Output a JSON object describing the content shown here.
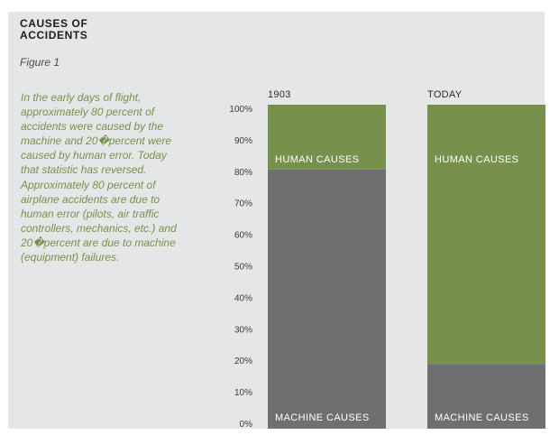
{
  "title": "CAUSES OF ACCIDENTS",
  "figure_label": "Figure 1",
  "description": "In the early days of flight, approximately 80 percent of accidents were caused by the machine and 20�percent were caused by human error. Today that statistic has reversed. Approximately 80 percent of airplane accidents are due to human error (pilots, air traffic controllers, mechanics, etc.) and 20�percent are due to machine (equipment) failures.",
  "colors": {
    "machine": "#6f6f71",
    "human": "#77914d",
    "background": "#e5e6e7"
  },
  "chart_data": {
    "type": "bar",
    "stacked": true,
    "categories": [
      "1903",
      "TODAY"
    ],
    "series": [
      {
        "name": "MACHINE CAUSES",
        "values": [
          80,
          20
        ]
      },
      {
        "name": "HUMAN CAUSES",
        "values": [
          20,
          80
        ]
      }
    ],
    "title": "CAUSES OF ACCIDENTS",
    "xlabel": "",
    "ylabel": "",
    "ylim": [
      0,
      100
    ],
    "yticks": [
      "0%",
      "10%",
      "20%",
      "30%",
      "40%",
      "50%",
      "60%",
      "70%",
      "80%",
      "90%",
      "100%"
    ],
    "grid": false
  }
}
